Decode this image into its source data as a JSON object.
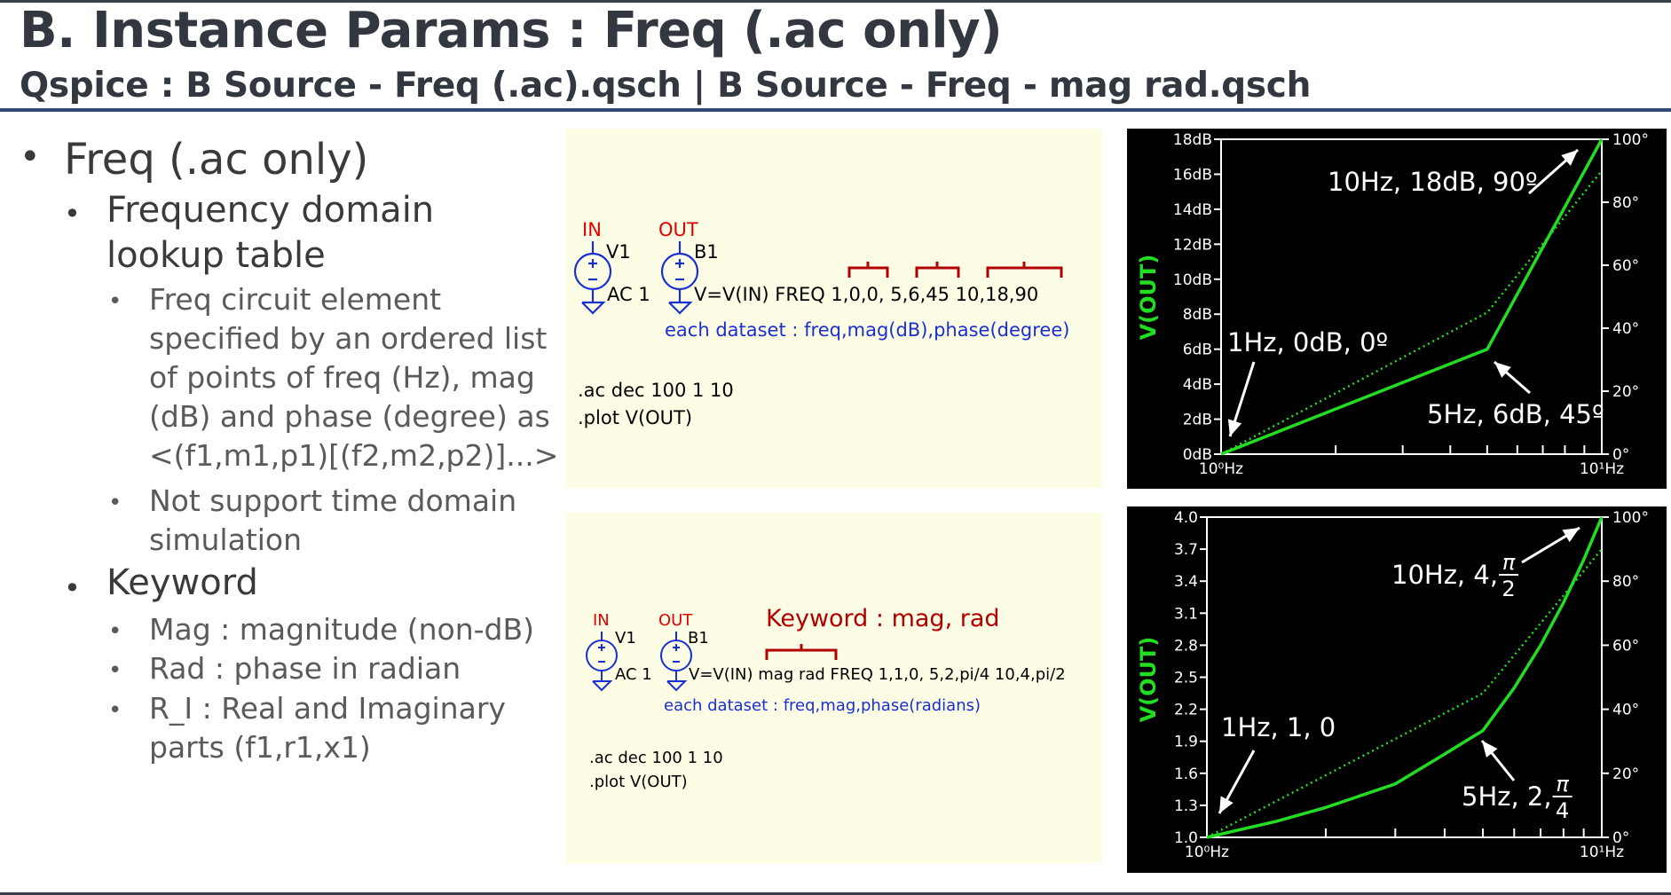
{
  "header": {
    "title": "B. Instance Params : Freq (.ac only)",
    "subtitle": "Qspice : B Source - Freq (.ac).qsch | B Source - Freq - mag rad.qsch"
  },
  "bullets": {
    "l1_freq": "Freq (.ac only)",
    "l2_lookup_1": "Frequency domain",
    "l2_lookup_2": "lookup table",
    "l3_freq_1": "Freq circuit element",
    "l3_freq_2": "specified by an ordered list",
    "l3_freq_3": "of points of freq (Hz), mag",
    "l3_freq_4": "(dB) and phase (degree) as",
    "l3_freq_5": "<(f1,m1,p1)[(f2,m2,p2)]...>",
    "l3_time_1": "Not support time domain",
    "l3_time_2": "simulation",
    "l1_keyword": "Keyword",
    "l3_mag": "Mag : magnitude (non-dB)",
    "l3_rad": "Rad : phase in radian",
    "l3_ri_1": "R_I : Real and Imaginary",
    "l3_ri_2": "parts (f1,r1,x1)"
  },
  "schematic_top": {
    "in_label": "IN",
    "out_label": "OUT",
    "v1_label": "V1",
    "b1_label": "B1",
    "ac_label": "AC 1",
    "b_expr": "V=V(IN) FREQ 1,0,0, 5,6,45 10,18,90",
    "dataset_note": "each dataset : freq,mag(dB),phase(degree)",
    "directive_1": ".ac dec 100 1 10",
    "directive_2": ".plot V(OUT)"
  },
  "schematic_bottom": {
    "in_label": "IN",
    "out_label": "OUT",
    "v1_label": "V1",
    "b1_label": "B1",
    "ac_label": "AC 1",
    "keyword_note": "Keyword : mag, rad",
    "b_expr": "V=V(IN) mag rad FREQ 1,1,0, 5,2,pi/4 10,4,pi/2",
    "dataset_note": "each dataset : freq,mag,phase(radians)",
    "directive_1": ".ac dec 100 1 10",
    "directive_2": ".plot V(OUT)"
  },
  "colors": {
    "trace": "#22dd22",
    "node_label": "#e00000",
    "component": "#1a2fd0",
    "brace": "#b00000",
    "note_blue": "#1a2fd0",
    "panel_bg": "#fdfde6",
    "title_text": "#333840",
    "divider": "#2d4a78"
  },
  "chart_data": [
    {
      "type": "line",
      "ylabel": "V(OUT)",
      "x_tick_labels": [
        "10⁰Hz",
        "10¹Hz"
      ],
      "x_scale": "log",
      "xlim": [
        1,
        10
      ],
      "y_tick_labels": [
        "0dB",
        "2dB",
        "4dB",
        "6dB",
        "8dB",
        "10dB",
        "12dB",
        "14dB",
        "16dB",
        "18dB"
      ],
      "ylim": [
        0,
        18
      ],
      "y2_tick_labels": [
        "0°",
        "20°",
        "40°",
        "60°",
        "80°",
        "100°"
      ],
      "y2lim": [
        0,
        100
      ],
      "series": [
        {
          "style": "solid",
          "axis": "left",
          "x": [
            1,
            5,
            10
          ],
          "y": [
            0,
            6,
            18
          ]
        },
        {
          "style": "dotted",
          "axis": "right",
          "x": [
            1,
            5,
            10
          ],
          "y": [
            0,
            45,
            90
          ]
        }
      ],
      "annotations": [
        "10Hz, 18dB, 90º",
        "1Hz, 0dB, 0º",
        "5Hz, 6dB, 45º"
      ]
    },
    {
      "type": "line",
      "ylabel": "V(OUT)",
      "x_tick_labels": [
        "10⁰Hz",
        "10¹Hz"
      ],
      "x_scale": "log",
      "xlim": [
        1,
        10
      ],
      "y_tick_labels": [
        "1.0",
        "1.3",
        "1.6",
        "1.9",
        "2.2",
        "2.5",
        "2.8",
        "3.1",
        "3.4",
        "3.7",
        "4.0"
      ],
      "ylim": [
        1.0,
        4.0
      ],
      "y2_tick_labels": [
        "0°",
        "20°",
        "40°",
        "60°",
        "80°",
        "100°"
      ],
      "y2lim": [
        0,
        100
      ],
      "series": [
        {
          "style": "solid",
          "axis": "left",
          "x": [
            1,
            1.5,
            2,
            3,
            4,
            5,
            6,
            7,
            8,
            9,
            10
          ],
          "y": [
            1.0,
            1.15,
            1.28,
            1.5,
            1.78,
            2.0,
            2.4,
            2.8,
            3.2,
            3.6,
            4.0
          ]
        },
        {
          "style": "dotted",
          "axis": "right",
          "x": [
            1,
            5,
            10
          ],
          "y": [
            0,
            45,
            90
          ]
        }
      ],
      "annotations": [
        {
          "prefix": "10Hz, 4, ",
          "num": "π",
          "den": "2"
        },
        {
          "prefix": "1Hz, 1, 0"
        },
        {
          "prefix": "5Hz, 2, ",
          "num": "π",
          "den": "4"
        }
      ]
    }
  ]
}
